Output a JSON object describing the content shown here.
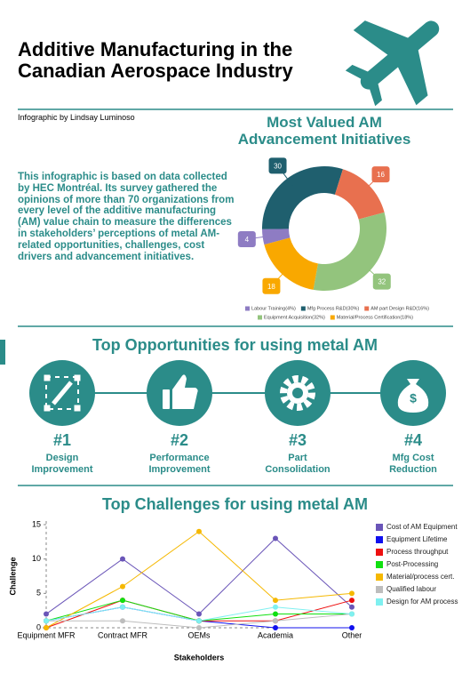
{
  "header": {
    "title": "Additive Manufacturing in the Canadian Aerospace Industry",
    "byline": "Infographic by Lindsay Luminoso"
  },
  "intro": "This infographic is based on data collected by HEC Montréal. Its survey gathered the opinions of more than 70 organizations from every level of the additive manufacturing (AM) value chain to measure the differences in stakeholders’ perceptions of metal AM-related opportunities, challenges, cost drivers and advancement initiatives.",
  "opportunities": {
    "title": "Top Opportunities for using metal AM",
    "items": [
      {
        "rank": "#1",
        "label": "Design Improvement"
      },
      {
        "rank": "#2",
        "label": "Performance Improvement"
      },
      {
        "rank": "#3",
        "label": "Part Consolidation"
      },
      {
        "rank": "#4",
        "label": "Mfg Cost Reduction"
      }
    ]
  },
  "chart_data": [
    {
      "type": "donut",
      "title": "Most Valued AM Advancement Initiatives",
      "categories": [
        "Labour Training(4%)",
        "Mfg Process R&D(30%)",
        "AM part Design R&D(16%)",
        "Equipment Acquisition(32%)",
        "Material/Process Certification(18%)"
      ],
      "values": [
        4,
        30,
        16,
        32,
        18
      ],
      "colors": [
        "#8e7cc3",
        "#1f5f6e",
        "#e8704f",
        "#93c47d",
        "#f9a800"
      ]
    },
    {
      "type": "line",
      "title": "Top Challenges for using metal AM",
      "x_label": "Stakeholders",
      "y_label": "Challenge",
      "categories": [
        "Equipment MFR",
        "Contract MFR",
        "OEMs",
        "Academia",
        "Other"
      ],
      "ylim": [
        0,
        15
      ],
      "yticks": [
        0,
        5,
        10,
        15
      ],
      "grid": false,
      "legend": "right",
      "series": [
        {
          "name": "Cost of AM Equipment",
          "color": "#6a55b8",
          "values": [
            2,
            10,
            2,
            13,
            3
          ]
        },
        {
          "name": "Equipment Lifetime",
          "color": "#1010ee",
          "values": [
            1,
            3,
            1,
            0,
            0
          ]
        },
        {
          "name": "Process throughput",
          "color": "#ee1010",
          "values": [
            0,
            4,
            1,
            1,
            4
          ]
        },
        {
          "name": "Post-Processing",
          "color": "#10e010",
          "values": [
            1,
            4,
            1,
            2,
            2
          ]
        },
        {
          "name": "Material/process cert.",
          "color": "#f5b800",
          "values": [
            0,
            6,
            14,
            4,
            5
          ]
        },
        {
          "name": "Qualified labour",
          "color": "#bdbdbd",
          "values": [
            1,
            1,
            0,
            1,
            2
          ]
        },
        {
          "name": "Design for AM process",
          "color": "#7ff0f0",
          "values": [
            1,
            3,
            1,
            3,
            2
          ]
        }
      ]
    }
  ]
}
